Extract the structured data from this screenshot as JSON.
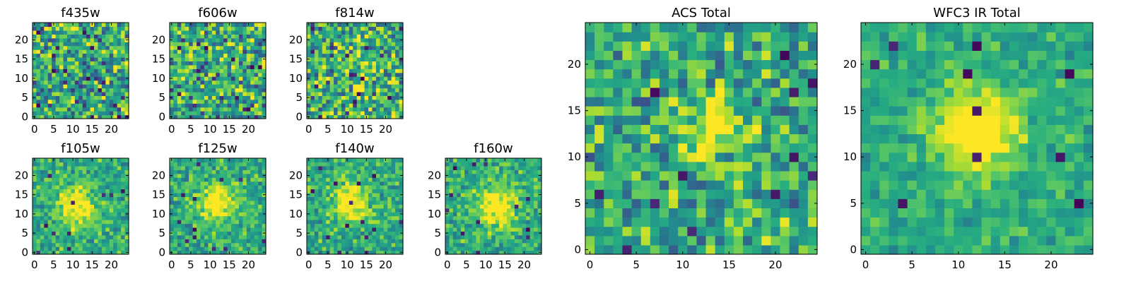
{
  "chart_data": [
    {
      "type": "heatmap",
      "title": "f435w",
      "xlabel": "",
      "ylabel": "",
      "xlim": [
        -0.5,
        24.5
      ],
      "ylim": [
        -0.5,
        24.5
      ],
      "xticks": [
        0,
        5,
        10,
        15,
        20
      ],
      "yticks": [
        0,
        5,
        10,
        15,
        20
      ],
      "grid_size": 25,
      "colormap": "viridis",
      "peak": [
        12,
        12
      ],
      "seed": 11,
      "noise": 1.0,
      "blob": 0.0,
      "blob_sigma": 3.0,
      "holes": 20
    },
    {
      "type": "heatmap",
      "title": "f606w",
      "xlabel": "",
      "ylabel": "",
      "xlim": [
        -0.5,
        24.5
      ],
      "ylim": [
        -0.5,
        24.5
      ],
      "xticks": [
        0,
        5,
        10,
        15,
        20
      ],
      "yticks": [
        0,
        5,
        10,
        15,
        20
      ],
      "grid_size": 25,
      "colormap": "viridis",
      "peak": [
        12,
        12
      ],
      "seed": 22,
      "noise": 1.0,
      "blob": 0.0,
      "blob_sigma": 3.0,
      "holes": 18
    },
    {
      "type": "heatmap",
      "title": "f814w",
      "xlabel": "",
      "ylabel": "",
      "xlim": [
        -0.5,
        24.5
      ],
      "ylim": [
        -0.5,
        24.5
      ],
      "xticks": [
        0,
        5,
        10,
        15,
        20
      ],
      "yticks": [
        0,
        5,
        10,
        15,
        20
      ],
      "grid_size": 25,
      "colormap": "viridis",
      "peak": [
        13,
        13
      ],
      "seed": 33,
      "noise": 1.0,
      "blob": 0.25,
      "blob_sigma": 2.5,
      "holes": 14
    },
    {
      "type": "heatmap",
      "title": "f105w",
      "xlabel": "",
      "ylabel": "",
      "xlim": [
        -0.5,
        24.5
      ],
      "ylim": [
        -0.5,
        24.5
      ],
      "xticks": [
        0,
        5,
        10,
        15,
        20
      ],
      "yticks": [
        0,
        5,
        10,
        15,
        20
      ],
      "grid_size": 25,
      "colormap": "viridis",
      "peak": [
        11,
        12
      ],
      "seed": 44,
      "noise": 0.55,
      "blob": 0.5,
      "blob_sigma": 3.5,
      "holes": 12
    },
    {
      "type": "heatmap",
      "title": "f125w",
      "xlabel": "",
      "ylabel": "",
      "xlim": [
        -0.5,
        24.5
      ],
      "ylim": [
        -0.5,
        24.5
      ],
      "xticks": [
        0,
        5,
        10,
        15,
        20
      ],
      "yticks": [
        0,
        5,
        10,
        15,
        20
      ],
      "grid_size": 25,
      "colormap": "viridis",
      "peak": [
        12,
        13
      ],
      "seed": 55,
      "noise": 0.55,
      "blob": 0.45,
      "blob_sigma": 3.5,
      "holes": 12
    },
    {
      "type": "heatmap",
      "title": "f140w",
      "xlabel": "",
      "ylabel": "",
      "xlim": [
        -0.5,
        24.5
      ],
      "ylim": [
        -0.5,
        24.5
      ],
      "xticks": [
        0,
        5,
        10,
        15,
        20
      ],
      "yticks": [
        0,
        5,
        10,
        15,
        20
      ],
      "grid_size": 25,
      "colormap": "viridis",
      "peak": [
        11,
        13
      ],
      "seed": 66,
      "noise": 0.55,
      "blob": 0.45,
      "blob_sigma": 3.5,
      "holes": 14
    },
    {
      "type": "heatmap",
      "title": "f160w",
      "xlabel": "",
      "ylabel": "",
      "xlim": [
        -0.5,
        24.5
      ],
      "ylim": [
        -0.5,
        24.5
      ],
      "xticks": [
        0,
        5,
        10,
        15,
        20
      ],
      "yticks": [
        0,
        5,
        10,
        15,
        20
      ],
      "grid_size": 25,
      "colormap": "viridis",
      "peak": [
        13,
        12
      ],
      "seed": 77,
      "noise": 0.55,
      "blob": 0.5,
      "blob_sigma": 3.5,
      "holes": 12
    },
    {
      "type": "heatmap",
      "title": "ACS Total",
      "xlabel": "",
      "ylabel": "",
      "xlim": [
        -0.5,
        24.5
      ],
      "ylim": [
        -0.5,
        24.5
      ],
      "xticks": [
        0,
        5,
        10,
        15,
        20
      ],
      "yticks": [
        0,
        5,
        10,
        15,
        20
      ],
      "grid_size": 25,
      "colormap": "viridis",
      "peak": [
        13,
        13
      ],
      "seed": 88,
      "noise": 0.8,
      "blob": 0.35,
      "blob_sigma": 2.5,
      "holes": 12
    },
    {
      "type": "heatmap",
      "title": "WFC3 IR Total",
      "xlabel": "",
      "ylabel": "",
      "xlim": [
        -0.5,
        24.5
      ],
      "ylim": [
        -0.5,
        24.5
      ],
      "xticks": [
        0,
        5,
        10,
        15,
        20
      ],
      "yticks": [
        0,
        5,
        10,
        15,
        20
      ],
      "grid_size": 25,
      "colormap": "viridis",
      "peak": [
        12,
        13
      ],
      "seed": 99,
      "noise": 0.4,
      "blob": 0.6,
      "blob_sigma": 3.0,
      "holes": 10
    }
  ]
}
